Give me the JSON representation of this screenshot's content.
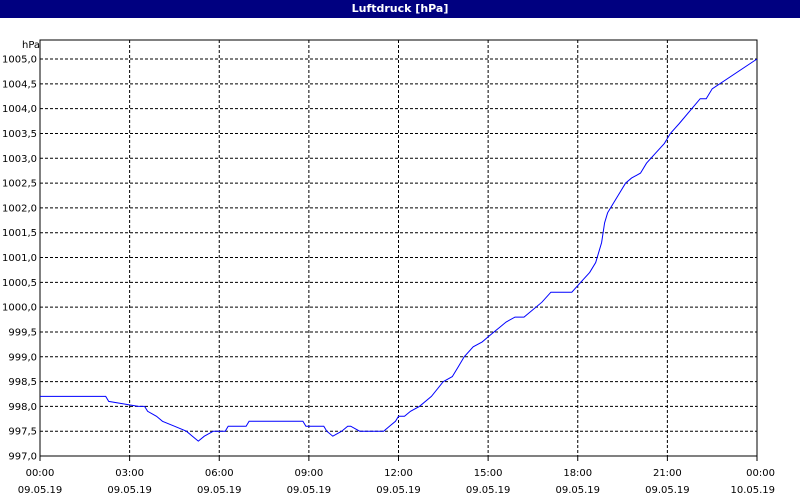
{
  "window": {
    "title": "Luftdruck [hPa]"
  },
  "chart_data": {
    "type": "line",
    "title": "Luftdruck [hPa]",
    "ylabel": "hPa",
    "xlabel": "",
    "ylim": [
      997.0,
      1005.0
    ],
    "xlim_hours": [
      0,
      24
    ],
    "grid": true,
    "legend": "none",
    "colors": {
      "line": "#0000ff",
      "grid": "#000000",
      "title_bg": "#000080"
    },
    "y_ticks": [
      "997,0",
      "997,5",
      "998,0",
      "998,5",
      "999,0",
      "999,5",
      "1000,0",
      "1000,5",
      "1001,0",
      "1001,5",
      "1002,0",
      "1002,5",
      "1003,0",
      "1003,5",
      "1004,0",
      "1004,5",
      "1005,0"
    ],
    "x_ticks": [
      {
        "time": "00:00",
        "date": "09.05.19"
      },
      {
        "time": "03:00",
        "date": "09.05.19"
      },
      {
        "time": "06:00",
        "date": "09.05.19"
      },
      {
        "time": "09:00",
        "date": "09.05.19"
      },
      {
        "time": "12:00",
        "date": "09.05.19"
      },
      {
        "time": "15:00",
        "date": "09.05.19"
      },
      {
        "time": "18:00",
        "date": "09.05.19"
      },
      {
        "time": "21:00",
        "date": "09.05.19"
      },
      {
        "time": "00:00",
        "date": "10.05.19"
      }
    ],
    "series": [
      {
        "x": [
          0.0,
          2.2,
          2.3,
          3.3,
          3.5,
          3.6,
          3.9,
          4.1,
          4.5,
          4.9,
          5.1,
          5.3,
          5.5,
          5.8,
          6.2,
          6.3,
          6.9,
          7.0,
          8.8,
          8.9,
          9.5,
          9.6,
          9.8,
          10.1,
          10.3,
          10.4,
          10.7,
          11.0,
          11.5,
          11.7,
          11.9,
          12.0,
          12.2,
          12.4,
          12.7,
          13.1,
          13.5,
          13.8,
          14.0,
          14.2,
          14.5,
          14.8,
          15.0,
          15.2,
          15.4,
          15.6,
          15.9,
          16.2,
          16.8,
          17.1,
          17.5,
          17.8,
          18.1,
          18.4,
          18.6,
          18.8,
          18.9,
          19.0,
          19.2,
          19.4,
          19.6,
          19.8,
          20.1,
          20.3,
          20.6,
          20.9,
          21.1,
          21.4,
          22.1,
          22.3,
          22.5,
          24.0
        ],
        "y": [
          998.2,
          998.2,
          998.1,
          998.0,
          998.0,
          997.9,
          997.8,
          997.7,
          997.6,
          997.5,
          997.4,
          997.3,
          997.4,
          997.5,
          997.5,
          997.6,
          997.6,
          997.7,
          997.7,
          997.6,
          997.6,
          997.5,
          997.4,
          997.5,
          997.6,
          997.6,
          997.5,
          997.5,
          997.5,
          997.6,
          997.7,
          997.8,
          997.8,
          997.9,
          998.0,
          998.2,
          998.5,
          998.6,
          998.8,
          999.0,
          999.2,
          999.3,
          999.4,
          999.5,
          999.6,
          999.7,
          999.8,
          999.8,
          1000.1,
          1000.3,
          1000.3,
          1000.3,
          1000.5,
          1000.7,
          1000.9,
          1001.3,
          1001.7,
          1001.9,
          1002.1,
          1002.3,
          1002.5,
          1002.6,
          1002.7,
          1002.9,
          1003.1,
          1003.3,
          1003.5,
          1003.7,
          1004.2,
          1004.2,
          1004.4,
          1005.0
        ]
      }
    ]
  }
}
